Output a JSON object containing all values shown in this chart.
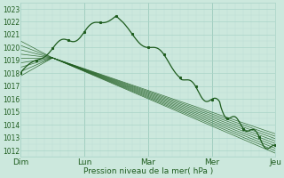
{
  "xlabel": "Pression niveau de la mer( hPa )",
  "bg_color": "#cce8dd",
  "grid_major_color": "#aad4c8",
  "grid_minor_color": "#bbddd4",
  "line_color": "#1e5c1e",
  "ylim": [
    1011.5,
    1023.5
  ],
  "xlim": [
    0,
    96
  ],
  "yticks": [
    1012,
    1013,
    1014,
    1015,
    1016,
    1017,
    1018,
    1019,
    1020,
    1021,
    1022,
    1023
  ],
  "xtick_positions": [
    0,
    24,
    48,
    72,
    96
  ],
  "xtick_labels": [
    "Dim",
    "Lun",
    "Mar",
    "Mer",
    "Jeu"
  ],
  "vline_positions": [
    24,
    48,
    72
  ],
  "fig_width": 3.2,
  "fig_height": 2.0,
  "dpi": 100
}
